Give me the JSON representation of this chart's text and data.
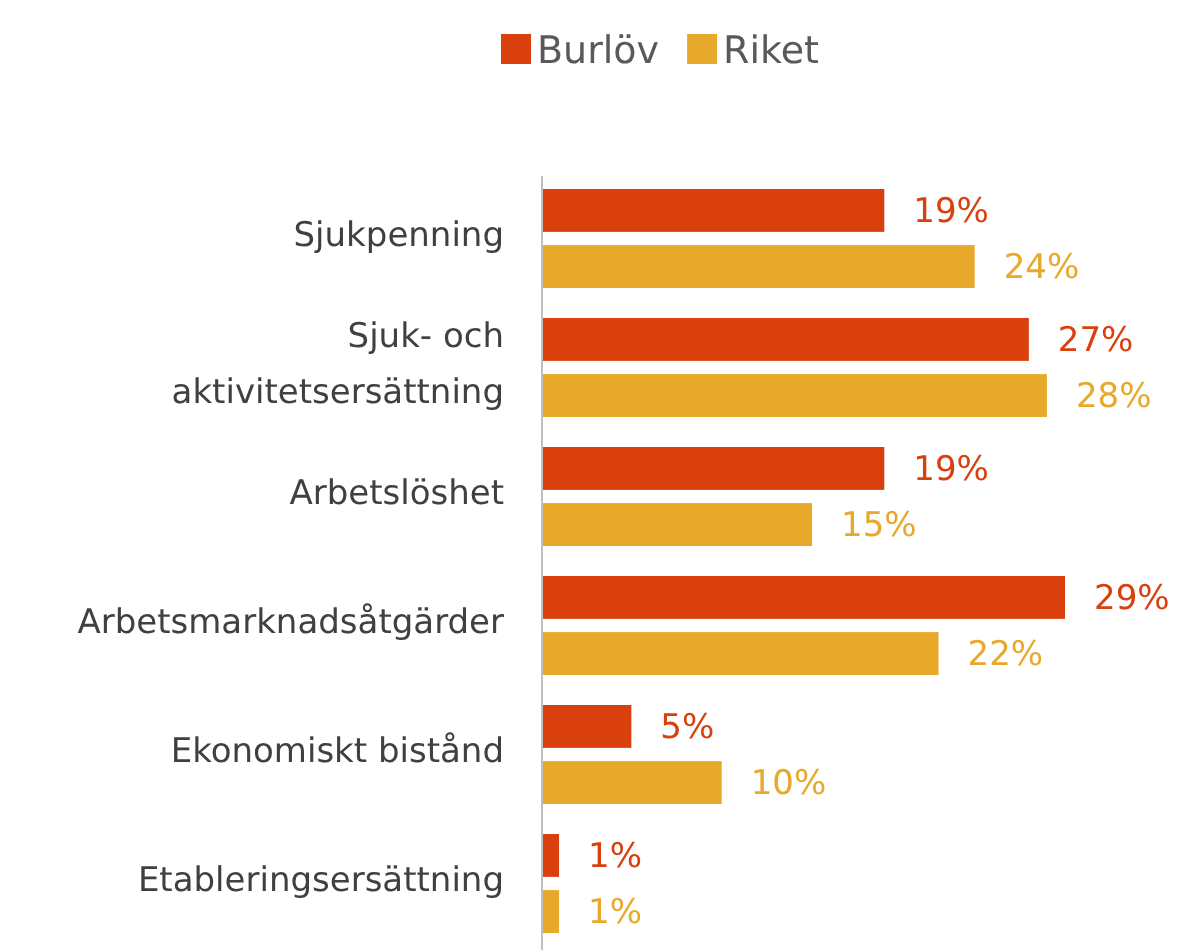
{
  "chart_data": {
    "type": "bar",
    "orientation": "horizontal",
    "categories": [
      "Sjukpenning",
      "Sjuk- och aktivitetsersättning",
      "Arbetslöshet",
      "Arbetsmarknadsåtgärder",
      "Ekonomiskt bistånd",
      "Etableringsersättning"
    ],
    "series": [
      {
        "name": "Burlöv",
        "color": "#d9400e",
        "values": [
          19,
          27,
          19,
          29,
          5,
          1
        ],
        "value_labels": [
          "19%",
          "27%",
          "19%",
          "29%",
          "5%",
          "1%"
        ]
      },
      {
        "name": "Riket",
        "color": "#e8a82a",
        "values": [
          24,
          28,
          15,
          22,
          10,
          1
        ],
        "value_labels": [
          "24%",
          "28%",
          "15%",
          "22%",
          "10%",
          "1%"
        ]
      }
    ],
    "tick_labels": "y",
    "legend": "top"
  }
}
